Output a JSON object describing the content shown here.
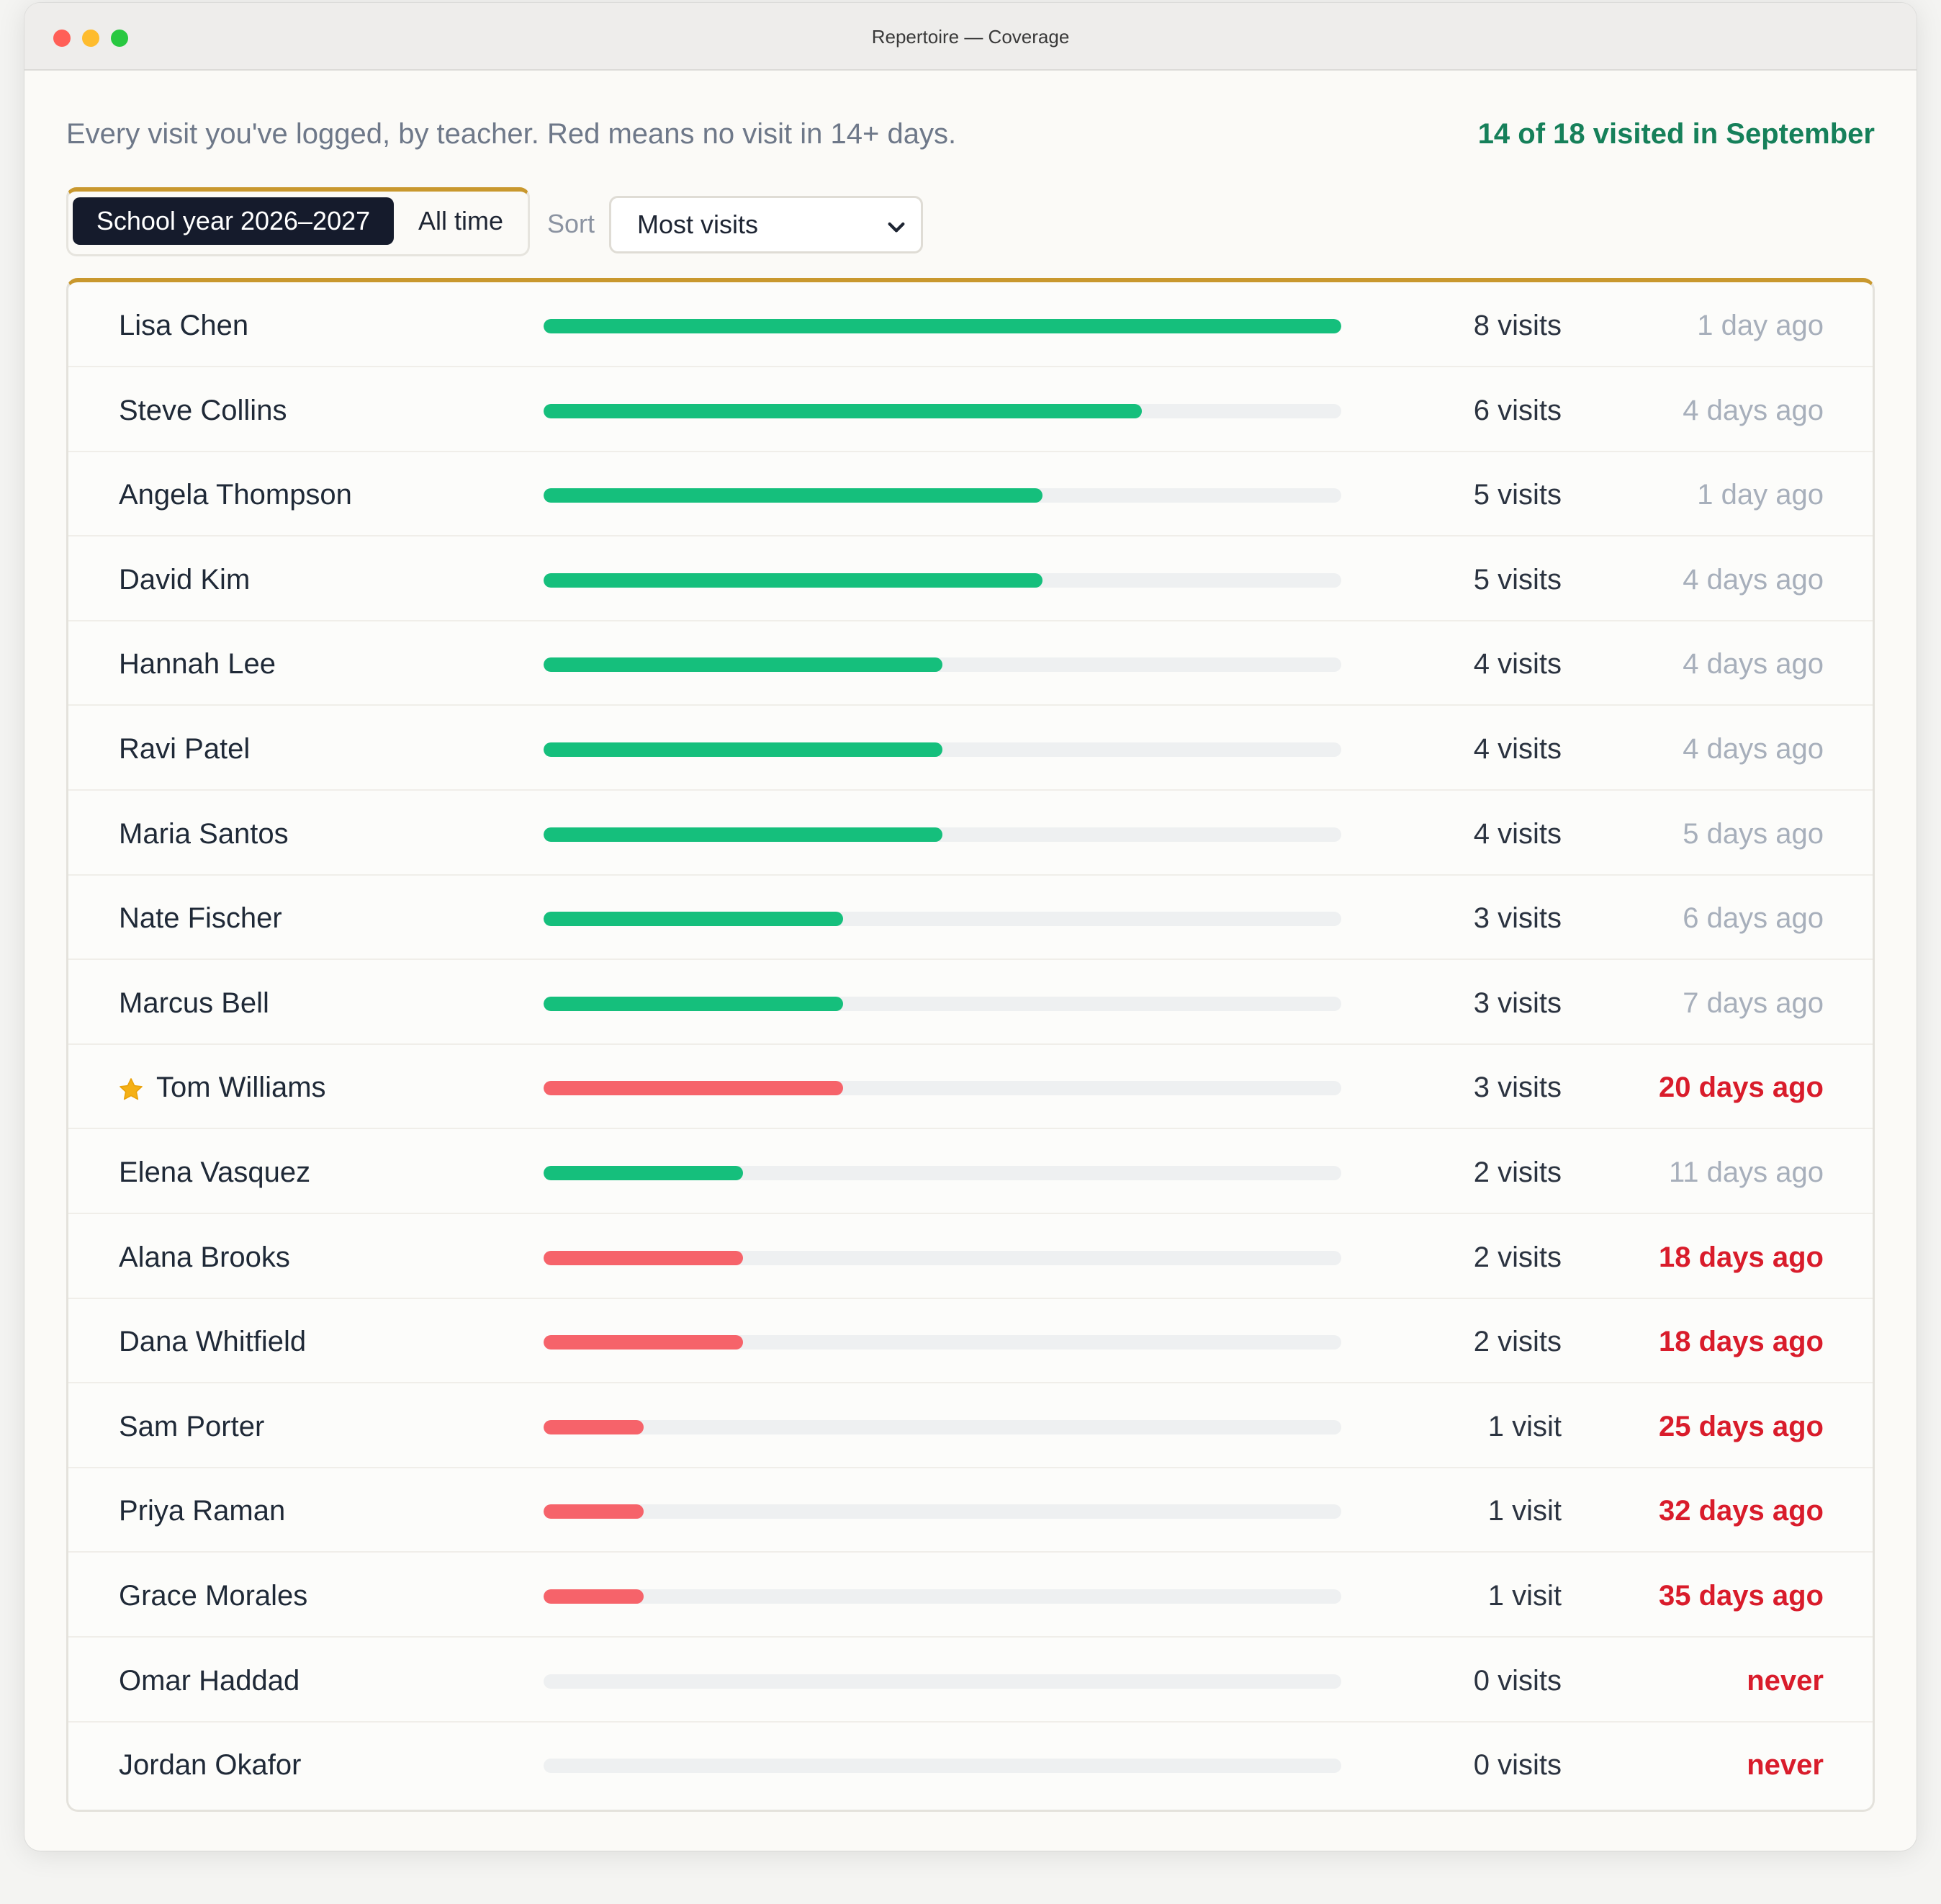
{
  "window": {
    "title": "Repertoire — Coverage"
  },
  "header": {
    "subtitle": "Every visit you've logged, by teacher. Red means no visit in 14+ days.",
    "summary": "14 of 18 visited in September"
  },
  "filters": {
    "range_active": "School year 2026–2027",
    "range_other": "All time",
    "sort_label": "Sort",
    "sort_value": "Most visits"
  },
  "colors": {
    "accent": "#c9982e",
    "ok_bar": "#15bf7c",
    "overdue_bar": "#f6636a",
    "overdue_text": "#d91c2b",
    "summary_text": "#16805a"
  },
  "max_visits": 8,
  "teachers": [
    {
      "name": "Lisa Chen",
      "visits": 8,
      "visits_label": "8 visits",
      "last": "1 day ago",
      "overdue": false,
      "starred": false
    },
    {
      "name": "Steve Collins",
      "visits": 6,
      "visits_label": "6 visits",
      "last": "4 days ago",
      "overdue": false,
      "starred": false
    },
    {
      "name": "Angela Thompson",
      "visits": 5,
      "visits_label": "5 visits",
      "last": "1 day ago",
      "overdue": false,
      "starred": false
    },
    {
      "name": "David Kim",
      "visits": 5,
      "visits_label": "5 visits",
      "last": "4 days ago",
      "overdue": false,
      "starred": false
    },
    {
      "name": "Hannah Lee",
      "visits": 4,
      "visits_label": "4 visits",
      "last": "4 days ago",
      "overdue": false,
      "starred": false
    },
    {
      "name": "Ravi Patel",
      "visits": 4,
      "visits_label": "4 visits",
      "last": "4 days ago",
      "overdue": false,
      "starred": false
    },
    {
      "name": "Maria Santos",
      "visits": 4,
      "visits_label": "4 visits",
      "last": "5 days ago",
      "overdue": false,
      "starred": false
    },
    {
      "name": "Nate Fischer",
      "visits": 3,
      "visits_label": "3 visits",
      "last": "6 days ago",
      "overdue": false,
      "starred": false
    },
    {
      "name": "Marcus Bell",
      "visits": 3,
      "visits_label": "3 visits",
      "last": "7 days ago",
      "overdue": false,
      "starred": false
    },
    {
      "name": "Tom Williams",
      "visits": 3,
      "visits_label": "3 visits",
      "last": "20 days ago",
      "overdue": true,
      "starred": true
    },
    {
      "name": "Elena Vasquez",
      "visits": 2,
      "visits_label": "2 visits",
      "last": "11 days ago",
      "overdue": false,
      "starred": false
    },
    {
      "name": "Alana Brooks",
      "visits": 2,
      "visits_label": "2 visits",
      "last": "18 days ago",
      "overdue": true,
      "starred": false
    },
    {
      "name": "Dana Whitfield",
      "visits": 2,
      "visits_label": "2 visits",
      "last": "18 days ago",
      "overdue": true,
      "starred": false
    },
    {
      "name": "Sam Porter",
      "visits": 1,
      "visits_label": "1 visit",
      "last": "25 days ago",
      "overdue": true,
      "starred": false
    },
    {
      "name": "Priya Raman",
      "visits": 1,
      "visits_label": "1 visit",
      "last": "32 days ago",
      "overdue": true,
      "starred": false
    },
    {
      "name": "Grace Morales",
      "visits": 1,
      "visits_label": "1 visit",
      "last": "35 days ago",
      "overdue": true,
      "starred": false
    },
    {
      "name": "Omar Haddad",
      "visits": 0,
      "visits_label": "0 visits",
      "last": "never",
      "overdue": true,
      "starred": false
    },
    {
      "name": "Jordan Okafor",
      "visits": 0,
      "visits_label": "0 visits",
      "last": "never",
      "overdue": true,
      "starred": false
    }
  ]
}
